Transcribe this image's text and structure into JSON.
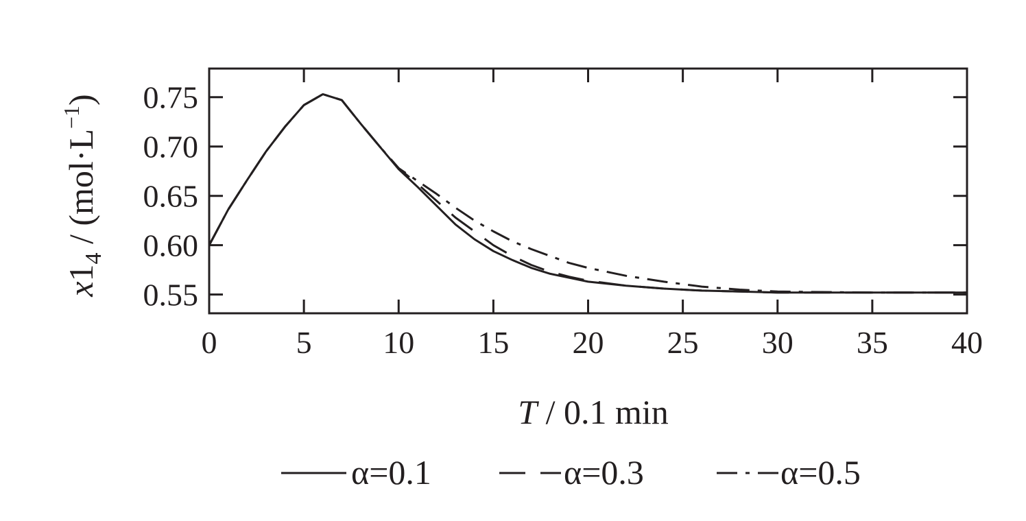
{
  "chart_data": {
    "type": "line",
    "title": "",
    "xlabel": "T / 0.1 min",
    "xlabel_var": "T",
    "xlabel_unit": " / 0.1 min",
    "ylabel": "x1_4 / (mol·L^-1)",
    "ylabel_var": "x",
    "ylabel_num": "1",
    "ylabel_sub": "4",
    "ylabel_unit": " / (mol·L",
    "ylabel_sup": "−1",
    "ylabel_close": ")",
    "xlim": [
      0,
      40
    ],
    "ylim": [
      0.531,
      0.779
    ],
    "xticks": [
      "0",
      "5",
      "10",
      "15",
      "20",
      "25",
      "30",
      "35",
      "40"
    ],
    "yticks": [
      "0.55",
      "0.60",
      "0.65",
      "0.70",
      "0.75"
    ],
    "grid": false,
    "legend_placement": "bottom",
    "series": [
      {
        "name": "α=0.1",
        "style": "solid",
        "x": [
          0,
          1,
          2,
          3,
          4,
          5,
          6,
          7,
          8,
          9,
          10,
          11,
          12,
          13,
          14,
          15,
          16,
          17,
          18,
          19,
          20,
          22,
          24,
          26,
          28,
          30,
          35,
          40
        ],
        "y": [
          0.6,
          0.636,
          0.666,
          0.695,
          0.72,
          0.742,
          0.753,
          0.747,
          0.723,
          0.7,
          0.677,
          0.659,
          0.64,
          0.621,
          0.606,
          0.594,
          0.585,
          0.577,
          0.571,
          0.567,
          0.563,
          0.559,
          0.556,
          0.554,
          0.553,
          0.552,
          0.552,
          0.552
        ]
      },
      {
        "name": "α=0.3",
        "style": "dashed",
        "x": [
          0,
          1,
          2,
          3,
          4,
          5,
          6,
          7,
          8,
          9,
          10,
          11,
          12,
          13,
          14,
          15,
          16,
          17,
          18,
          19,
          20,
          22,
          24,
          26,
          28,
          30,
          35,
          40
        ],
        "y": [
          0.6,
          0.636,
          0.666,
          0.695,
          0.72,
          0.742,
          0.753,
          0.747,
          0.723,
          0.7,
          0.678,
          0.662,
          0.645,
          0.628,
          0.614,
          0.6,
          0.589,
          0.58,
          0.573,
          0.568,
          0.564,
          0.559,
          0.556,
          0.554,
          0.553,
          0.552,
          0.552,
          0.552
        ]
      },
      {
        "name": "α=0.5",
        "style": "dashdot",
        "x": [
          0,
          1,
          2,
          3,
          4,
          5,
          6,
          7,
          8,
          9,
          10,
          11,
          12,
          13,
          14,
          15,
          16,
          17,
          18,
          19,
          20,
          22,
          24,
          26,
          28,
          30,
          35,
          40
        ],
        "y": [
          0.6,
          0.636,
          0.666,
          0.695,
          0.72,
          0.742,
          0.753,
          0.747,
          0.723,
          0.7,
          0.678,
          0.665,
          0.652,
          0.638,
          0.625,
          0.614,
          0.604,
          0.596,
          0.589,
          0.582,
          0.577,
          0.569,
          0.563,
          0.558,
          0.555,
          0.553,
          0.552,
          0.552
        ]
      }
    ]
  }
}
